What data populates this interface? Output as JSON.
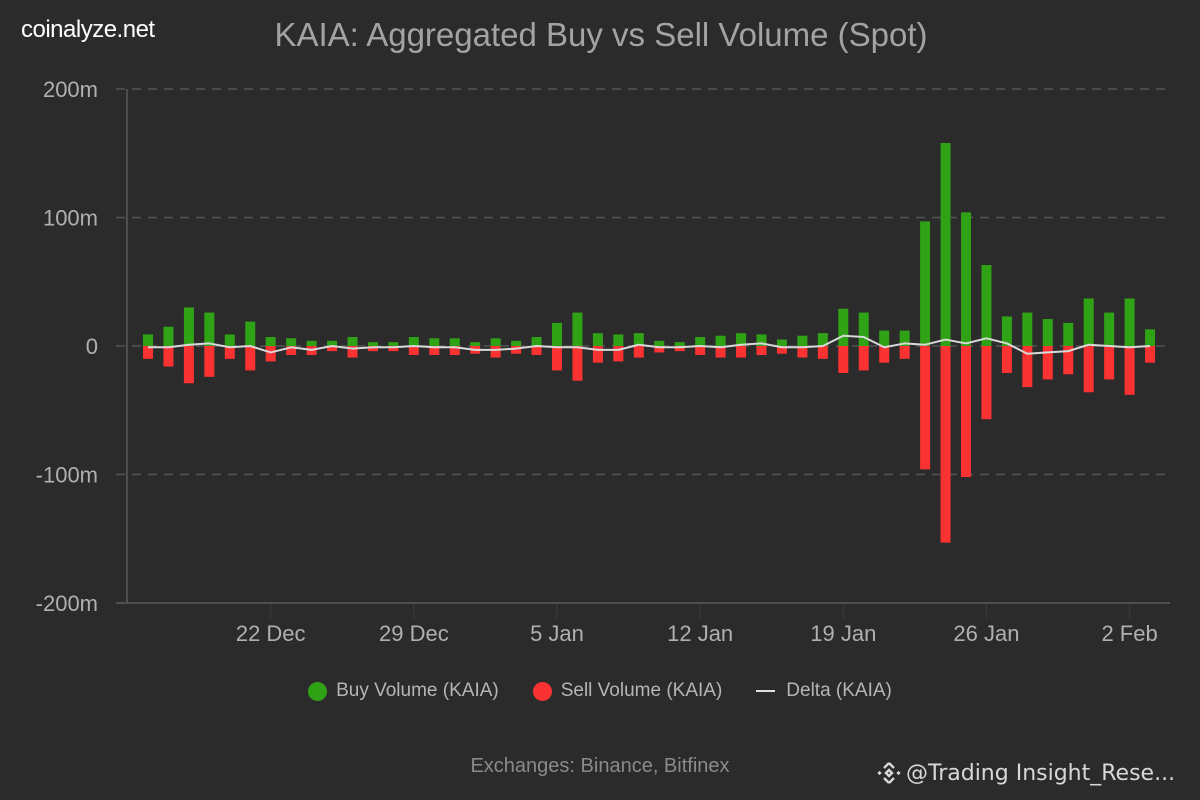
{
  "brand": "coinalyze.net",
  "title": "KAIA: Aggregated Buy vs Sell Volume (Spot)",
  "footer": "Exchanges: Binance, Bitfinex",
  "watermark": {
    "icon": "binance-diamond-icon",
    "text": "@Trading Insight_Rese..."
  },
  "colors": {
    "background": "#2b2b2b",
    "buy": "#2fa216",
    "sell": "#fa3232",
    "delta": "#d9d9d9",
    "grid": "#555555",
    "axis": "#4f4f4f"
  },
  "legend": [
    {
      "label": "Buy Volume (KAIA)",
      "marker": "dot",
      "color": "#2fa216"
    },
    {
      "label": "Sell Volume (KAIA)",
      "marker": "dot",
      "color": "#fa3232"
    },
    {
      "label": "Delta (KAIA)",
      "marker": "line",
      "color": "#d9d9d9"
    }
  ],
  "chart_data": {
    "type": "bar",
    "title": "KAIA: Aggregated Buy vs Sell Volume (Spot)",
    "xlabel": "",
    "ylabel": "",
    "ylim": [
      -200,
      200
    ],
    "unit": "m",
    "grid": true,
    "legend_position": "bottom",
    "y_ticks": [
      {
        "value": 200,
        "label": "200m"
      },
      {
        "value": 100,
        "label": "100m"
      },
      {
        "value": 0,
        "label": "0"
      },
      {
        "value": -100,
        "label": "-100m"
      },
      {
        "value": -200,
        "label": "-200m"
      }
    ],
    "x_ticks": [
      {
        "index": 6,
        "label": "22 Dec"
      },
      {
        "index": 13,
        "label": "29 Dec"
      },
      {
        "index": 20,
        "label": "5 Jan"
      },
      {
        "index": 27,
        "label": "12 Jan"
      },
      {
        "index": 34,
        "label": "19 Jan"
      },
      {
        "index": 41,
        "label": "26 Jan"
      },
      {
        "index": 48,
        "label": "2 Feb"
      }
    ],
    "categories": [
      "16 Dec",
      "17 Dec",
      "18 Dec",
      "19 Dec",
      "20 Dec",
      "21 Dec",
      "22 Dec",
      "23 Dec",
      "24 Dec",
      "25 Dec",
      "26 Dec",
      "27 Dec",
      "28 Dec",
      "29 Dec",
      "30 Dec",
      "31 Dec",
      "1 Jan",
      "2 Jan",
      "3 Jan",
      "4 Jan",
      "5 Jan",
      "6 Jan",
      "7 Jan",
      "8 Jan",
      "9 Jan",
      "10 Jan",
      "11 Jan",
      "12 Jan",
      "13 Jan",
      "14 Jan",
      "15 Jan",
      "16 Jan",
      "17 Jan",
      "18 Jan",
      "19 Jan",
      "20 Jan",
      "21 Jan",
      "22 Jan",
      "23 Jan",
      "24 Jan",
      "25 Jan",
      "26 Jan",
      "27 Jan",
      "28 Jan",
      "29 Jan",
      "30 Jan",
      "31 Jan",
      "1 Feb",
      "2 Feb",
      "3 Feb"
    ],
    "series": [
      {
        "name": "Buy Volume (KAIA)",
        "type": "bar",
        "color": "#2fa216",
        "values": [
          9,
          15,
          30,
          26,
          9,
          19,
          7,
          6,
          4,
          4,
          7,
          3,
          3,
          7,
          6,
          6,
          3,
          6,
          4,
          7,
          18,
          26,
          10,
          9,
          10,
          4,
          3,
          7,
          8,
          10,
          9,
          5,
          8,
          10,
          29,
          26,
          12,
          12,
          97,
          158,
          104,
          63,
          23,
          26,
          21,
          18,
          37,
          26,
          37,
          13
        ]
      },
      {
        "name": "Sell Volume (KAIA)",
        "type": "bar",
        "color": "#fa3232",
        "values": [
          -10,
          -16,
          -29,
          -24,
          -10,
          -19,
          -12,
          -7,
          -7,
          -4,
          -9,
          -4,
          -4,
          -7,
          -7,
          -7,
          -6,
          -9,
          -6,
          -7,
          -19,
          -27,
          -13,
          -12,
          -9,
          -5,
          -4,
          -7,
          -9,
          -9,
          -7,
          -6,
          -9,
          -10,
          -21,
          -19,
          -13,
          -10,
          -96,
          -153,
          -102,
          -57,
          -21,
          -32,
          -26,
          -22,
          -36,
          -26,
          -38,
          -13
        ]
      },
      {
        "name": "Delta (KAIA)",
        "type": "line",
        "color": "#d9d9d9",
        "values": [
          -1,
          -1,
          1,
          2,
          -1,
          0,
          -5,
          -1,
          -3,
          0,
          -2,
          -1,
          -1,
          0,
          -1,
          -1,
          -3,
          -3,
          -2,
          0,
          -1,
          -1,
          -3,
          -3,
          1,
          -1,
          -1,
          0,
          -1,
          1,
          2,
          -1,
          -1,
          0,
          8,
          7,
          -1,
          2,
          1,
          5,
          2,
          6,
          2,
          -6,
          -5,
          -4,
          1,
          0,
          -1,
          0
        ]
      }
    ]
  }
}
